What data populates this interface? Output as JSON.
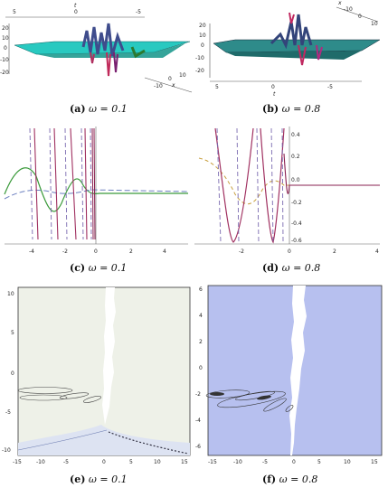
{
  "panels": [
    {
      "id": "a",
      "caption": {
        "label": "(a)",
        "text": "ω = 0.1"
      }
    },
    {
      "id": "b",
      "caption": {
        "label": "(b)",
        "text": "ω = 0.8"
      }
    },
    {
      "id": "c",
      "caption": {
        "label": "(c)",
        "text": "ω = 0.1"
      }
    },
    {
      "id": "d",
      "caption": {
        "label": "(d)",
        "text": "ω = 0.8"
      }
    },
    {
      "id": "e",
      "caption": {
        "label": "(e)",
        "text": "ω = 0.1"
      }
    },
    {
      "id": "f",
      "caption": {
        "label": "(f)",
        "text": "ω = 0.8"
      }
    }
  ],
  "surface_a": {
    "axis_t_ticks": [
      "5",
      "0",
      "-5"
    ],
    "axis_t_label": "t",
    "z_ticks": [
      "20",
      "10",
      "0",
      "-10",
      "-20"
    ],
    "axis_x_ticks": [
      "-10",
      "0",
      "10"
    ],
    "axis_x_label": "x"
  },
  "surface_b": {
    "axis_top_ticks": [
      "-10",
      "0",
      "10"
    ],
    "axis_top_label": "x",
    "z_ticks": [
      "20",
      "10",
      "0",
      "-10",
      "-20"
    ],
    "axis_t_ticks": [
      "5",
      "0",
      "-5"
    ],
    "axis_t_label": "t"
  },
  "chart_data": [
    {
      "type": "line",
      "panel": "c",
      "x_ticks": [
        "-4",
        "-2",
        "0",
        "2",
        "4"
      ],
      "xlim": [
        -5,
        5
      ]
    },
    {
      "type": "line",
      "panel": "d",
      "x_ticks": [
        "-2",
        "0",
        "2",
        "4"
      ],
      "y_ticks": [
        "0.4",
        "0.2",
        "0.0",
        "-0.2",
        "-0.4",
        "-0.6"
      ],
      "xlim": [
        -4,
        4
      ]
    },
    {
      "type": "contour",
      "panel": "e",
      "x_ticks": [
        "-15",
        "-10",
        "-5",
        "0",
        "5",
        "10",
        "15"
      ],
      "y_ticks": [
        "10",
        "5",
        "0",
        "-5",
        "-10"
      ],
      "xlim": [
        -16,
        16
      ],
      "ylim": [
        -11,
        11
      ]
    },
    {
      "type": "contour",
      "panel": "f",
      "x_ticks": [
        "-15",
        "-10",
        "-5",
        "0",
        "5",
        "10",
        "15"
      ],
      "y_ticks": [
        "6",
        "4",
        "2",
        "0",
        "-2",
        "-4",
        "-6"
      ],
      "xlim": [
        -16,
        16
      ],
      "ylim": [
        -6.5,
        6.5
      ]
    }
  ]
}
